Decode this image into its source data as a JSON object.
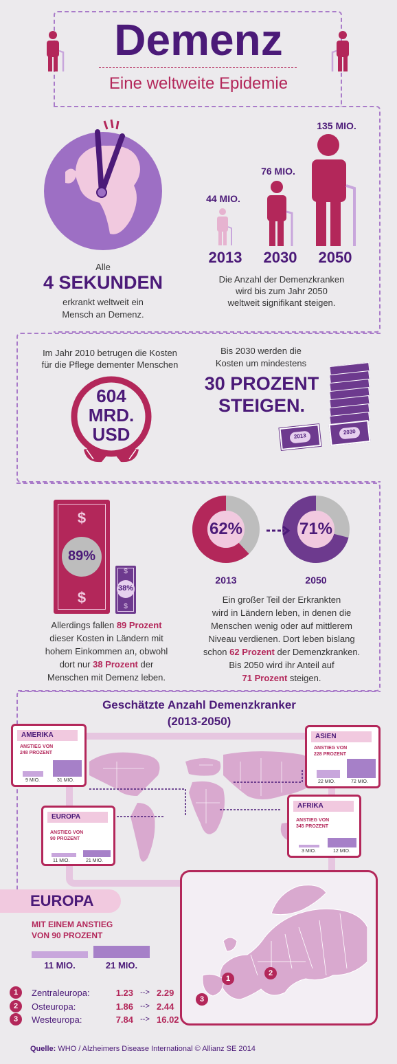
{
  "header": {
    "title": "Demenz",
    "subtitle": "Eine weltweite Epidemie"
  },
  "section1": {
    "clock_caption_1": "Alle",
    "clock_caption_big": "4 SEKUNDEN",
    "clock_caption_2": "erkrankt weltweit ein",
    "clock_caption_3": "Mensch an Demenz.",
    "figures": [
      {
        "value": "44 MIO.",
        "year": "2013"
      },
      {
        "value": "76 MIO.",
        "year": "2030"
      },
      {
        "value": "135 MIO.",
        "year": "2050"
      }
    ],
    "figures_caption_1": "Die Anzahl der Demenzkranken",
    "figures_caption_2": "wird bis zum Jahr 2050",
    "figures_caption_3": "weltweit signifikant steigen."
  },
  "section2": {
    "cost_text_1": "Im Jahr 2010 betrugen die Kosten",
    "cost_text_2": "für die Pflege dementer Menschen",
    "cost_line1": "604",
    "cost_line2": "MRD.",
    "cost_line3": "USD",
    "rise_text_1": "Bis 2030 werden die",
    "rise_text_2": "Kosten um mindestens",
    "rise_big_1": "30 PROZENT",
    "rise_big_2": "STEIGEN.",
    "bill_small": "2013",
    "bill_big": "2030"
  },
  "section3": {
    "bill_big_pct": "89%",
    "bill_small_pct": "38%",
    "left_text": {
      "l1a": "Allerdings fallen ",
      "l1b": "89 Prozent",
      "l2": "dieser Kosten in Ländern mit",
      "l3": "hohem Einkommen an, obwohl",
      "l4a": "dort nur ",
      "l4b": "38 Prozent",
      "l4c": " der",
      "l5": "Menschen mit Demenz leben."
    },
    "donut1": {
      "pct": "62%",
      "year": "2013",
      "value": 62
    },
    "donut2": {
      "pct": "71%",
      "year": "2050",
      "value": 71
    },
    "right_text": {
      "l1": "Ein großer Teil der Erkrankten",
      "l2": "wird in Ländern leben, in denen die",
      "l3": "Menschen wenig oder auf mittlerem",
      "l4": "Niveau verdienen. Dort leben bislang",
      "l5a": "schon ",
      "l5b": "62 Prozent",
      "l5c": " der Demenzkranken.",
      "l6": "Bis 2050 wird ihr Anteil auf",
      "l7a": "71 Prozent",
      "l7b": " steigen."
    }
  },
  "section4": {
    "title_1": "Geschätzte Anzahl Demenzkranker",
    "title_2": "(2013-2050)",
    "regions": [
      {
        "name": "AMERIKA",
        "rise_1": "ANSTIEG VON",
        "rise_2": "248 PROZENT",
        "from": "9 MIO.",
        "to": "31 MIO.",
        "from_val": 9,
        "to_val": 31
      },
      {
        "name": "ASIEN",
        "rise_1": "ANSTIEG VON",
        "rise_2": "228 PROZENT",
        "from": "22 MIO.",
        "to": "72 MIO.",
        "from_val": 22,
        "to_val": 72
      },
      {
        "name": "EUROPA",
        "rise_1": "ANSTIEG VON",
        "rise_2": "90 PROZENT",
        "from": "11 MIO.",
        "to": "21 MIO.",
        "from_val": 11,
        "to_val": 21
      },
      {
        "name": "AFRIKA",
        "rise_1": "ANSTIEG VON",
        "rise_2": "345 PROZENT",
        "from": "3 MIO.",
        "to": "12 MIO.",
        "from_val": 3,
        "to_val": 12
      }
    ]
  },
  "section5": {
    "title": "EUROPA",
    "sub_1": "MIT EINEM ANSTIEG",
    "sub_2": "VON 90 PROZENT",
    "from": "11 MIO.",
    "to": "21 MIO.",
    "rows": [
      {
        "n": "1",
        "name": "Zentraleuropa:",
        "from": "1.23",
        "arrow": "-->",
        "to": "2.29"
      },
      {
        "n": "2",
        "name": "Osteuropa:",
        "from": "1.86",
        "arrow": "-->",
        "to": "2.44"
      },
      {
        "n": "3",
        "name": "Westeuropa:",
        "from": "7.84",
        "arrow": "-->",
        "to": "16.02"
      }
    ],
    "marker_1": "1",
    "marker_2": "2",
    "marker_3": "3"
  },
  "footer": {
    "label": "Quelle:",
    "text": " WHO / Alzheimers Disease International © Allianz SE 2014"
  },
  "colors": {
    "purple": "#4b1a78",
    "crimson": "#b3275a",
    "lilac": "#9d6fc4",
    "pink": "#f1c9df"
  }
}
